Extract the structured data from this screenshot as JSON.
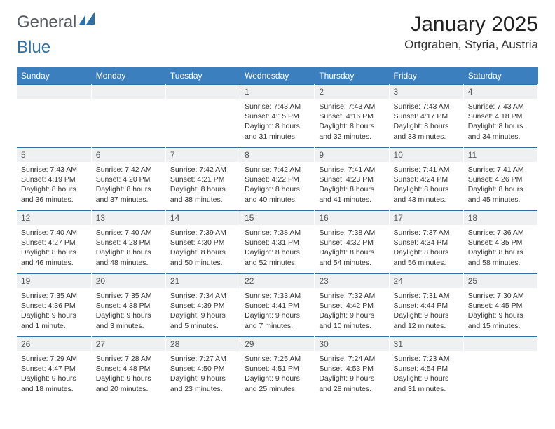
{
  "logo": {
    "general": "General",
    "blue": "Blue"
  },
  "title": "January 2025",
  "location": "Ortgraben, Styria, Austria",
  "colors": {
    "header_bg": "#3b7fbf",
    "header_text": "#ffffff",
    "daynum_bg": "#eef0f2",
    "daynum_border": "#2f6fa8",
    "body_text": "#333333",
    "logo_gray": "#555b61",
    "logo_blue": "#2f6fa8"
  },
  "weekdays": [
    "Sunday",
    "Monday",
    "Tuesday",
    "Wednesday",
    "Thursday",
    "Friday",
    "Saturday"
  ],
  "weeks": [
    [
      {
        "n": "",
        "lines": []
      },
      {
        "n": "",
        "lines": []
      },
      {
        "n": "",
        "lines": []
      },
      {
        "n": "1",
        "lines": [
          "Sunrise: 7:43 AM",
          "Sunset: 4:15 PM",
          "Daylight: 8 hours",
          "and 31 minutes."
        ]
      },
      {
        "n": "2",
        "lines": [
          "Sunrise: 7:43 AM",
          "Sunset: 4:16 PM",
          "Daylight: 8 hours",
          "and 32 minutes."
        ]
      },
      {
        "n": "3",
        "lines": [
          "Sunrise: 7:43 AM",
          "Sunset: 4:17 PM",
          "Daylight: 8 hours",
          "and 33 minutes."
        ]
      },
      {
        "n": "4",
        "lines": [
          "Sunrise: 7:43 AM",
          "Sunset: 4:18 PM",
          "Daylight: 8 hours",
          "and 34 minutes."
        ]
      }
    ],
    [
      {
        "n": "5",
        "lines": [
          "Sunrise: 7:43 AM",
          "Sunset: 4:19 PM",
          "Daylight: 8 hours",
          "and 36 minutes."
        ]
      },
      {
        "n": "6",
        "lines": [
          "Sunrise: 7:42 AM",
          "Sunset: 4:20 PM",
          "Daylight: 8 hours",
          "and 37 minutes."
        ]
      },
      {
        "n": "7",
        "lines": [
          "Sunrise: 7:42 AM",
          "Sunset: 4:21 PM",
          "Daylight: 8 hours",
          "and 38 minutes."
        ]
      },
      {
        "n": "8",
        "lines": [
          "Sunrise: 7:42 AM",
          "Sunset: 4:22 PM",
          "Daylight: 8 hours",
          "and 40 minutes."
        ]
      },
      {
        "n": "9",
        "lines": [
          "Sunrise: 7:41 AM",
          "Sunset: 4:23 PM",
          "Daylight: 8 hours",
          "and 41 minutes."
        ]
      },
      {
        "n": "10",
        "lines": [
          "Sunrise: 7:41 AM",
          "Sunset: 4:24 PM",
          "Daylight: 8 hours",
          "and 43 minutes."
        ]
      },
      {
        "n": "11",
        "lines": [
          "Sunrise: 7:41 AM",
          "Sunset: 4:26 PM",
          "Daylight: 8 hours",
          "and 45 minutes."
        ]
      }
    ],
    [
      {
        "n": "12",
        "lines": [
          "Sunrise: 7:40 AM",
          "Sunset: 4:27 PM",
          "Daylight: 8 hours",
          "and 46 minutes."
        ]
      },
      {
        "n": "13",
        "lines": [
          "Sunrise: 7:40 AM",
          "Sunset: 4:28 PM",
          "Daylight: 8 hours",
          "and 48 minutes."
        ]
      },
      {
        "n": "14",
        "lines": [
          "Sunrise: 7:39 AM",
          "Sunset: 4:30 PM",
          "Daylight: 8 hours",
          "and 50 minutes."
        ]
      },
      {
        "n": "15",
        "lines": [
          "Sunrise: 7:38 AM",
          "Sunset: 4:31 PM",
          "Daylight: 8 hours",
          "and 52 minutes."
        ]
      },
      {
        "n": "16",
        "lines": [
          "Sunrise: 7:38 AM",
          "Sunset: 4:32 PM",
          "Daylight: 8 hours",
          "and 54 minutes."
        ]
      },
      {
        "n": "17",
        "lines": [
          "Sunrise: 7:37 AM",
          "Sunset: 4:34 PM",
          "Daylight: 8 hours",
          "and 56 minutes."
        ]
      },
      {
        "n": "18",
        "lines": [
          "Sunrise: 7:36 AM",
          "Sunset: 4:35 PM",
          "Daylight: 8 hours",
          "and 58 minutes."
        ]
      }
    ],
    [
      {
        "n": "19",
        "lines": [
          "Sunrise: 7:35 AM",
          "Sunset: 4:36 PM",
          "Daylight: 9 hours",
          "and 1 minute."
        ]
      },
      {
        "n": "20",
        "lines": [
          "Sunrise: 7:35 AM",
          "Sunset: 4:38 PM",
          "Daylight: 9 hours",
          "and 3 minutes."
        ]
      },
      {
        "n": "21",
        "lines": [
          "Sunrise: 7:34 AM",
          "Sunset: 4:39 PM",
          "Daylight: 9 hours",
          "and 5 minutes."
        ]
      },
      {
        "n": "22",
        "lines": [
          "Sunrise: 7:33 AM",
          "Sunset: 4:41 PM",
          "Daylight: 9 hours",
          "and 7 minutes."
        ]
      },
      {
        "n": "23",
        "lines": [
          "Sunrise: 7:32 AM",
          "Sunset: 4:42 PM",
          "Daylight: 9 hours",
          "and 10 minutes."
        ]
      },
      {
        "n": "24",
        "lines": [
          "Sunrise: 7:31 AM",
          "Sunset: 4:44 PM",
          "Daylight: 9 hours",
          "and 12 minutes."
        ]
      },
      {
        "n": "25",
        "lines": [
          "Sunrise: 7:30 AM",
          "Sunset: 4:45 PM",
          "Daylight: 9 hours",
          "and 15 minutes."
        ]
      }
    ],
    [
      {
        "n": "26",
        "lines": [
          "Sunrise: 7:29 AM",
          "Sunset: 4:47 PM",
          "Daylight: 9 hours",
          "and 18 minutes."
        ]
      },
      {
        "n": "27",
        "lines": [
          "Sunrise: 7:28 AM",
          "Sunset: 4:48 PM",
          "Daylight: 9 hours",
          "and 20 minutes."
        ]
      },
      {
        "n": "28",
        "lines": [
          "Sunrise: 7:27 AM",
          "Sunset: 4:50 PM",
          "Daylight: 9 hours",
          "and 23 minutes."
        ]
      },
      {
        "n": "29",
        "lines": [
          "Sunrise: 7:25 AM",
          "Sunset: 4:51 PM",
          "Daylight: 9 hours",
          "and 25 minutes."
        ]
      },
      {
        "n": "30",
        "lines": [
          "Sunrise: 7:24 AM",
          "Sunset: 4:53 PM",
          "Daylight: 9 hours",
          "and 28 minutes."
        ]
      },
      {
        "n": "31",
        "lines": [
          "Sunrise: 7:23 AM",
          "Sunset: 4:54 PM",
          "Daylight: 9 hours",
          "and 31 minutes."
        ]
      },
      {
        "n": "",
        "lines": []
      }
    ]
  ]
}
